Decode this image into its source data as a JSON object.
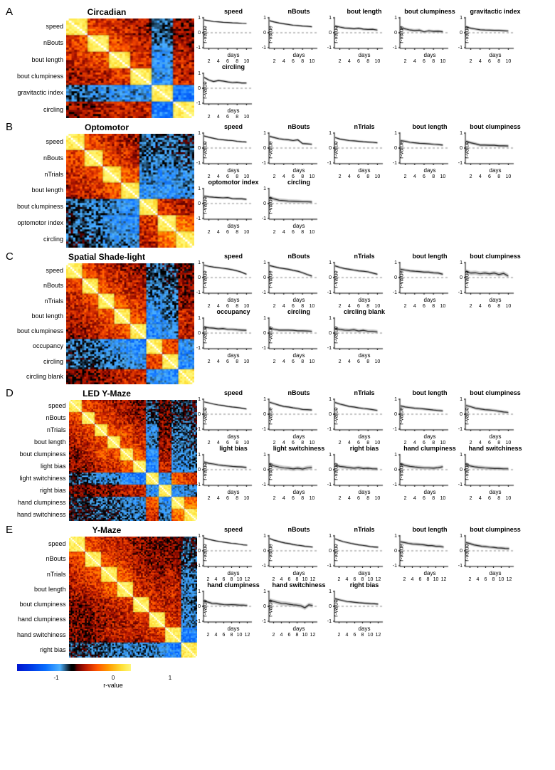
{
  "colormap": {
    "stops": [
      {
        "v": -1,
        "c": "#0017d1"
      },
      {
        "v": -0.75,
        "c": "#003de8"
      },
      {
        "v": -0.5,
        "c": "#0a6fff"
      },
      {
        "v": -0.25,
        "c": "#4db1ff"
      },
      {
        "v": -0.05,
        "c": "#000000"
      },
      {
        "v": 0,
        "c": "#000000"
      },
      {
        "v": 0.05,
        "c": "#5a0000"
      },
      {
        "v": 0.2,
        "c": "#b81800"
      },
      {
        "v": 0.4,
        "c": "#ff5400"
      },
      {
        "v": 0.6,
        "c": "#ff9a00"
      },
      {
        "v": 0.85,
        "c": "#ffe23a"
      },
      {
        "v": 1,
        "c": "#fff77a"
      }
    ],
    "diag": "#ffffff",
    "min": -1,
    "max": 1,
    "label": "r-value",
    "ticks": [
      -1,
      0,
      1
    ]
  },
  "chart_style": {
    "width": 72,
    "height": 48,
    "ylim": [
      -1,
      1
    ],
    "yticks": [
      -1,
      0,
      1
    ],
    "ylabel": "r-value",
    "xlabel": "days",
    "axis_color": "#000000",
    "dash_color": "#888888",
    "line_color": "#111111",
    "ci_color": "#bcbcbc",
    "title_fontsize": 9,
    "tick_fontsize": 7,
    "label_fontsize": 8
  },
  "panels": [
    {
      "letter": "A",
      "title": "Circadian",
      "metrics": [
        "speed",
        "nBouts",
        "bout length",
        "bout clumpiness",
        "gravitactic index",
        "circling"
      ],
      "heatmap_n": 48,
      "heatmap_height": 140,
      "heatmap_seed": 11,
      "x_max": 11,
      "xticks": [
        2,
        4,
        6,
        8,
        10
      ],
      "minis": [
        {
          "t": "speed",
          "y": [
            0.85,
            0.8,
            0.75,
            0.73,
            0.7,
            0.68,
            0.66,
            0.65,
            0.63,
            0.62
          ],
          "ci": 0.05
        },
        {
          "t": "nBouts",
          "y": [
            0.8,
            0.72,
            0.65,
            0.6,
            0.55,
            0.5,
            0.48,
            0.45,
            0.43,
            0.4
          ],
          "ci": 0.06
        },
        {
          "t": "bout length",
          "y": [
            0.45,
            0.38,
            0.32,
            0.3,
            0.27,
            0.3,
            0.24,
            0.22,
            0.23,
            0.18
          ],
          "ci": 0.08
        },
        {
          "t": "bout clumpiness",
          "y": [
            0.32,
            0.26,
            0.18,
            0.15,
            0.17,
            0.06,
            0.13,
            0.09,
            0.1,
            0.07
          ],
          "ci": 0.1
        },
        {
          "t": "gravitactic index",
          "y": [
            0.38,
            0.3,
            0.25,
            0.2,
            0.18,
            0.17,
            0.16,
            0.16,
            0.14,
            0.12
          ],
          "ci": 0.08
        },
        {
          "t": "circling",
          "y": [
            0.72,
            0.55,
            0.45,
            0.52,
            0.48,
            0.42,
            0.38,
            0.4,
            0.35,
            0.35
          ],
          "ci": 0.08
        }
      ]
    },
    {
      "letter": "B",
      "title": "Optomotor",
      "metrics": [
        "speed",
        "nBouts",
        "nTrials",
        "bout length",
        "bout clumpiness",
        "optomotor index",
        "circling"
      ],
      "heatmap_n": 56,
      "heatmap_height": 160,
      "heatmap_seed": 22,
      "x_max": 11,
      "xticks": [
        2,
        4,
        6,
        8,
        10
      ],
      "minis": [
        {
          "t": "speed",
          "y": [
            0.8,
            0.72,
            0.65,
            0.58,
            0.55,
            0.52,
            0.5,
            0.45,
            0.42,
            0.4
          ],
          "ci": 0.06
        },
        {
          "t": "nBouts",
          "y": [
            0.78,
            0.7,
            0.62,
            0.58,
            0.55,
            0.5,
            0.55,
            0.3,
            0.28,
            0.25
          ],
          "ci": 0.08
        },
        {
          "t": "nTrials",
          "y": [
            0.7,
            0.6,
            0.55,
            0.5,
            0.48,
            0.45,
            0.42,
            0.4,
            0.38,
            0.35
          ],
          "ci": 0.07
        },
        {
          "t": "bout length",
          "y": [
            0.5,
            0.45,
            0.38,
            0.35,
            0.32,
            0.3,
            0.28,
            0.25,
            0.23,
            0.2
          ],
          "ci": 0.08
        },
        {
          "t": "bout clumpiness",
          "y": [
            0.45,
            0.35,
            0.28,
            0.2,
            0.2,
            0.18,
            0.18,
            0.15,
            0.15,
            0.14
          ],
          "ci": 0.1
        },
        {
          "t": "optomotor index",
          "y": [
            0.5,
            0.45,
            0.42,
            0.4,
            0.38,
            0.4,
            0.33,
            0.32,
            0.32,
            0.28
          ],
          "ci": 0.08
        },
        {
          "t": "circling",
          "y": [
            0.4,
            0.3,
            0.22,
            0.2,
            0.16,
            0.15,
            0.14,
            0.12,
            0.12,
            0.1
          ],
          "ci": 0.12
        }
      ]
    },
    {
      "letter": "C",
      "title": "Spatial Shade-light",
      "metrics": [
        "speed",
        "nBouts",
        "nTrials",
        "bout length",
        "bout clumpiness",
        "occupancy",
        "circling",
        "circling blank"
      ],
      "heatmap_n": 64,
      "heatmap_height": 170,
      "heatmap_seed": 33,
      "x_max": 11,
      "xticks": [
        2,
        4,
        6,
        8,
        10
      ],
      "minis": [
        {
          "t": "speed",
          "y": [
            0.82,
            0.75,
            0.7,
            0.66,
            0.62,
            0.58,
            0.52,
            0.45,
            0.35,
            0.22
          ],
          "ci": 0.07
        },
        {
          "t": "nBouts",
          "y": [
            0.8,
            0.72,
            0.65,
            0.6,
            0.55,
            0.48,
            0.42,
            0.32,
            0.2,
            0.1
          ],
          "ci": 0.08
        },
        {
          "t": "nTrials",
          "y": [
            0.78,
            0.68,
            0.6,
            0.55,
            0.5,
            0.45,
            0.42,
            0.38,
            0.3,
            0.22
          ],
          "ci": 0.08
        },
        {
          "t": "bout length",
          "y": [
            0.55,
            0.5,
            0.45,
            0.42,
            0.4,
            0.36,
            0.36,
            0.32,
            0.3,
            0.22
          ],
          "ci": 0.1
        },
        {
          "t": "bout clumpiness",
          "y": [
            0.42,
            0.3,
            0.32,
            0.25,
            0.3,
            0.24,
            0.3,
            0.2,
            0.28,
            0.1
          ],
          "ci": 0.14
        },
        {
          "t": "occupancy",
          "y": [
            0.4,
            0.35,
            0.33,
            0.28,
            0.3,
            0.25,
            0.25,
            0.22,
            0.2,
            0.18
          ],
          "ci": 0.1
        },
        {
          "t": "circling",
          "y": [
            0.32,
            0.25,
            0.2,
            0.2,
            0.2,
            0.18,
            0.15,
            0.15,
            0.14,
            0.12
          ],
          "ci": 0.1
        },
        {
          "t": "circling blank",
          "y": [
            0.3,
            0.24,
            0.2,
            0.18,
            0.22,
            0.14,
            0.18,
            0.12,
            0.12,
            0.08
          ],
          "ci": 0.12
        }
      ]
    },
    {
      "letter": "D",
      "title": "LED Y-Maze",
      "metrics": [
        "speed",
        "nBouts",
        "nTrials",
        "bout length",
        "bout clumpiness",
        "light bias",
        "light switchiness",
        "right bias",
        "hand clumpiness",
        "hand switchiness"
      ],
      "heatmap_n": 80,
      "heatmap_height": 170,
      "heatmap_seed": 44,
      "x_max": 11,
      "xticks": [
        2,
        4,
        6,
        8,
        10
      ],
      "minis": [
        {
          "t": "speed",
          "y": [
            0.82,
            0.75,
            0.68,
            0.62,
            0.58,
            0.52,
            0.48,
            0.45,
            0.4,
            0.35
          ],
          "ci": 0.06
        },
        {
          "t": "nBouts",
          "y": [
            0.8,
            0.7,
            0.6,
            0.52,
            0.48,
            0.42,
            0.38,
            0.32,
            0.3,
            0.28
          ],
          "ci": 0.08
        },
        {
          "t": "nTrials",
          "y": [
            0.78,
            0.68,
            0.6,
            0.52,
            0.48,
            0.42,
            0.38,
            0.35,
            0.3,
            0.25
          ],
          "ci": 0.08
        },
        {
          "t": "bout length",
          "y": [
            0.55,
            0.48,
            0.44,
            0.4,
            0.38,
            0.35,
            0.32,
            0.28,
            0.25,
            0.22
          ],
          "ci": 0.09
        },
        {
          "t": "bout clumpiness",
          "y": [
            0.58,
            0.5,
            0.4,
            0.35,
            0.3,
            0.28,
            0.25,
            0.2,
            0.15,
            0.12
          ],
          "ci": 0.1
        },
        {
          "t": "light bias",
          "y": [
            0.52,
            0.42,
            0.38,
            0.32,
            0.28,
            0.25,
            0.22,
            0.2,
            0.18,
            0.15
          ],
          "ci": 0.09
        },
        {
          "t": "light switchiness",
          "y": [
            0.35,
            0.25,
            0.18,
            0.12,
            0.1,
            0.05,
            0.1,
            0.04,
            0.12,
            0.15
          ],
          "ci": 0.14
        },
        {
          "t": "right bias",
          "y": [
            0.32,
            0.22,
            0.18,
            0.14,
            0.1,
            0.14,
            0.08,
            0.1,
            0.06,
            0.05
          ],
          "ci": 0.12
        },
        {
          "t": "hand clumpiness",
          "y": [
            0.38,
            0.28,
            0.22,
            0.18,
            0.15,
            0.12,
            0.12,
            0.1,
            0.14,
            0.2
          ],
          "ci": 0.12
        },
        {
          "t": "hand switchiness",
          "y": [
            0.35,
            0.24,
            0.18,
            0.15,
            0.12,
            0.1,
            0.08,
            0.08,
            0.06,
            0.06
          ],
          "ci": 0.12
        }
      ]
    },
    {
      "letter": "E",
      "title": "Y-Maze",
      "metrics": [
        "speed",
        "nBouts",
        "nTrials",
        "bout length",
        "bout clumpiness",
        "hand clumpiness",
        "hand switchiness",
        "right bias"
      ],
      "heatmap_n": 80,
      "heatmap_height": 170,
      "heatmap_seed": 55,
      "x_max": 13,
      "xticks": [
        2,
        4,
        6,
        8,
        10,
        12
      ],
      "minis": [
        {
          "t": "speed",
          "y": [
            0.85,
            0.78,
            0.72,
            0.66,
            0.62,
            0.58,
            0.54,
            0.5,
            0.48,
            0.44,
            0.4,
            0.38
          ],
          "ci": 0.05
        },
        {
          "t": "nBouts",
          "y": [
            0.82,
            0.72,
            0.65,
            0.58,
            0.52,
            0.48,
            0.42,
            0.38,
            0.35,
            0.3,
            0.28,
            0.25
          ],
          "ci": 0.07
        },
        {
          "t": "nTrials",
          "y": [
            0.8,
            0.7,
            0.62,
            0.56,
            0.5,
            0.45,
            0.4,
            0.37,
            0.33,
            0.28,
            0.26,
            0.24
          ],
          "ci": 0.07
        },
        {
          "t": "bout length",
          "y": [
            0.6,
            0.55,
            0.5,
            0.46,
            0.45,
            0.42,
            0.4,
            0.35,
            0.35,
            0.3,
            0.3,
            0.25
          ],
          "ci": 0.1
        },
        {
          "t": "bout clumpiness",
          "y": [
            0.55,
            0.48,
            0.4,
            0.35,
            0.3,
            0.28,
            0.25,
            0.23,
            0.2,
            0.18,
            0.16,
            0.15
          ],
          "ci": 0.1
        },
        {
          "t": "hand clumpiness",
          "y": [
            0.35,
            0.28,
            0.2,
            0.18,
            0.15,
            0.12,
            0.1,
            0.12,
            0.1,
            0.08,
            0.08,
            0.06
          ],
          "ci": 0.1
        },
        {
          "t": "hand switchiness",
          "y": [
            0.4,
            0.33,
            0.26,
            0.2,
            0.18,
            0.14,
            0.1,
            0.08,
            0.03,
            -0.1,
            0.1,
            0.05
          ],
          "ci": 0.14
        },
        {
          "t": "right bias",
          "y": [
            0.52,
            0.44,
            0.38,
            0.32,
            0.3,
            0.27,
            0.24,
            0.22,
            0.2,
            0.18,
            0.17,
            0.15
          ],
          "ci": 0.08
        }
      ]
    }
  ]
}
